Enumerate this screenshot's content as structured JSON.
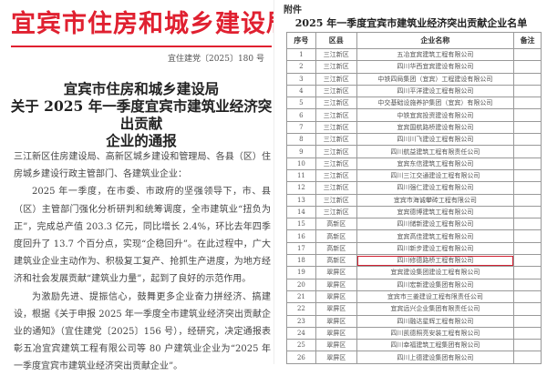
{
  "left": {
    "masthead": "宜宾市住房和城乡建设局",
    "doc_number": "宜住建党〔2025〕180 号",
    "heading": [
      "宜宾市住房和城乡建设局",
      "关于 2025 年一季度宜宾市建筑业经济突出贡献",
      "企业的通报"
    ],
    "addressee": "三江新区住房建设局、高新区城乡建设和管理局、各县（区）住房城乡建设行政主管部门、各建筑业企业：",
    "paragraphs": [
      "2025 年一季度，在市委、市政府的坚强领导下，市、县（区）主管部门强化分析研判和统筹调度，全市建筑业“扭负为正”，完成总产值 203.3 亿元，同比增长 2.4%，环比去年四季度回升了 13.7 个百分点，实现“企稳回升”。在此过程中，广大建筑业企业主动作为、积极复工复产、抢抓生产进度，为地方经济和社会发展贡献“建筑业力量”，起到了良好的示范作用。",
      "为激励先进、提振信心，鼓舞更多企业奋力拼经济、搞建设，根据《关于申报 2025 年一季度全市建筑业经济突出贡献企业的通知》（宜住建党〔2025〕156 号），经研究，决定通报表彰五冶宜宾建筑工程有限公司等 80 户建筑业企业为“2025 年一季度宜宾市建筑业经济突出贡献企业”。"
    ]
  },
  "right": {
    "annex_label": "附件",
    "table_title": "2025 年一季度宜宾市建筑业经济突出贡献企业名单",
    "columns": [
      "序号",
      "区县",
      "企业名称",
      "备注"
    ],
    "highlighted_row": 18,
    "highlight_color": "#d22233",
    "rows": [
      [
        "1",
        "三江新区",
        "五冶宜宾建筑工程有限公司",
        ""
      ],
      [
        "2",
        "三江新区",
        "四川华西宜宾建设有限公司",
        ""
      ],
      [
        "3",
        "三江新区",
        "中铁四局集团（宜宾）工程建设有限公司",
        ""
      ],
      [
        "4",
        "三江新区",
        "四川平洋建设工程有限公司",
        ""
      ],
      [
        "5",
        "三江新区",
        "中交基础设施养护集团（宜宾）有限公司",
        ""
      ],
      [
        "6",
        "三江新区",
        "中铁宜宾投资建设有限公司",
        ""
      ],
      [
        "7",
        "三江新区",
        "宜宾国航路桥建设有限公司",
        ""
      ],
      [
        "8",
        "三江新区",
        "四川川飞建设工程有限公司",
        ""
      ],
      [
        "9",
        "三江新区",
        "四川航益建筑工程有限责任公司",
        ""
      ],
      [
        "10",
        "三江新区",
        "宜宾东信建筑工程有限公司",
        ""
      ],
      [
        "11",
        "三江新区",
        "四川三江交通建设工程有限公司",
        ""
      ],
      [
        "12",
        "三江新区",
        "四川强仁建设工程有限公司",
        ""
      ],
      [
        "13",
        "三江新区",
        "宜宾市海诚攀砖工程有限公司",
        ""
      ],
      [
        "14",
        "三江新区",
        "宜宾德博建筑工程有限公司",
        ""
      ],
      [
        "15",
        "高新区",
        "四川储新建设工程有限公司",
        ""
      ],
      [
        "16",
        "高新区",
        "宜宾高佳建筑工程有限公司",
        ""
      ],
      [
        "17",
        "高新区",
        "四川新步建设工程有限公司",
        ""
      ],
      [
        "18",
        "高新区",
        "四川修德路桥工程有限公司",
        ""
      ],
      [
        "19",
        "翠屏区",
        "宜宾建设集团建设工程有限公司",
        ""
      ],
      [
        "20",
        "翠屏区",
        "四川宏新建设集团有限公司",
        ""
      ],
      [
        "21",
        "翠屏区",
        "宜宾市三姜建设工程有限责任公司",
        ""
      ],
      [
        "22",
        "翠屏区",
        "宜宾远兴企业集团有限责任公司",
        ""
      ],
      [
        "23",
        "翠屏区",
        "四川融达星辉工程有限公司",
        ""
      ],
      [
        "24",
        "翠屏区",
        "四川凯德照亮安装工程有限公司",
        ""
      ],
      [
        "25",
        "翠屏区",
        "四川幸福建筑工程集团有限公司",
        ""
      ],
      [
        "26",
        "翠屏区",
        "四川上德建设集团有限公司",
        ""
      ]
    ]
  }
}
